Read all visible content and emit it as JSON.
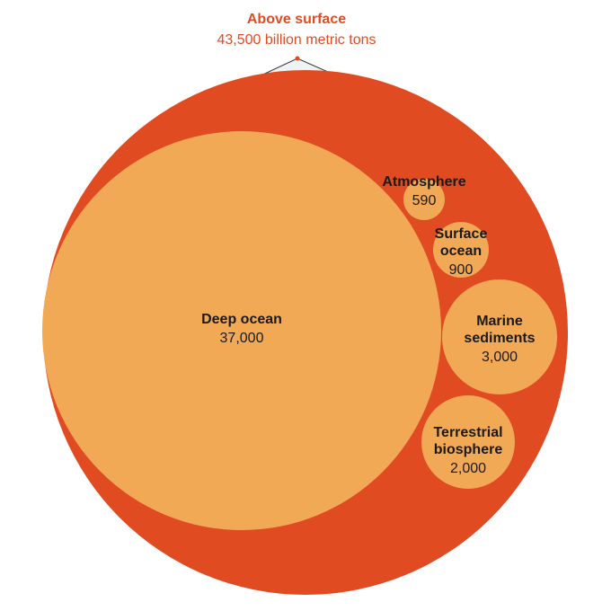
{
  "chart_data": {
    "type": "bubble",
    "unit": "billion metric tons",
    "total": {
      "label": "Above surface",
      "value_text": "43,500 billion metric tons",
      "value": 43500
    },
    "bubbles": [
      {
        "key": "deep_ocean",
        "lines": [
          "Deep ocean"
        ],
        "value_text": "37,000",
        "value": 37000
      },
      {
        "key": "atmosphere",
        "lines": [
          "Atmosphere"
        ],
        "value_text": "590",
        "value": 590
      },
      {
        "key": "surface_ocean",
        "lines": [
          "Surface",
          "ocean"
        ],
        "value_text": "900",
        "value": 900
      },
      {
        "key": "marine_sediments",
        "lines": [
          "Marine",
          "sediments"
        ],
        "value_text": "3,000",
        "value": 3000
      },
      {
        "key": "terrestrial_biosphere",
        "lines": [
          "Terrestrial",
          "biosphere"
        ],
        "value_text": "2,000",
        "value": 2000
      }
    ]
  },
  "colors": {
    "outer": "#E04B22",
    "inner": "#F2A955",
    "accent_text": "#E04B22",
    "label_text": "#1a1a1a",
    "callout_fill": "#EEF3F6",
    "callout_stroke": "#333333"
  }
}
